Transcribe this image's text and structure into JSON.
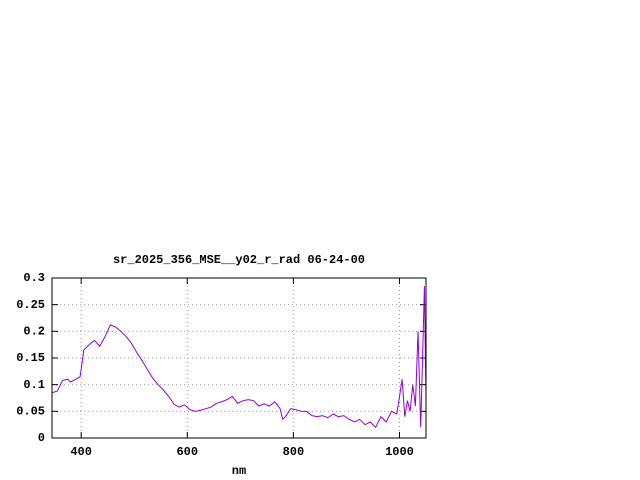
{
  "chart_data": {
    "type": "line",
    "title": "sr_2025_356_MSE__y02_r_rad 06-24-00",
    "x_label": "nm",
    "x": [
      345,
      355,
      365,
      375,
      380,
      390,
      398,
      405,
      415,
      425,
      435,
      445,
      455,
      465,
      475,
      485,
      495,
      505,
      515,
      525,
      535,
      545,
      555,
      565,
      575,
      585,
      595,
      605,
      615,
      625,
      635,
      645,
      655,
      665,
      675,
      685,
      695,
      705,
      715,
      725,
      735,
      745,
      755,
      765,
      775,
      780,
      785,
      795,
      805,
      815,
      825,
      835,
      845,
      855,
      865,
      875,
      885,
      895,
      905,
      915,
      925,
      935,
      945,
      955,
      965,
      975,
      985,
      995,
      1005,
      1010,
      1015,
      1020,
      1025,
      1030,
      1035,
      1040,
      1043,
      1047,
      1050
    ],
    "series": [
      {
        "name": "sr_2025_356_MSE__y02_r_rad",
        "color": "#9400d3",
        "values": [
          0.085,
          0.088,
          0.108,
          0.11,
          0.105,
          0.11,
          0.115,
          0.165,
          0.175,
          0.183,
          0.172,
          0.19,
          0.212,
          0.208,
          0.2,
          0.19,
          0.177,
          0.16,
          0.145,
          0.128,
          0.112,
          0.1,
          0.09,
          0.078,
          0.063,
          0.058,
          0.062,
          0.053,
          0.05,
          0.052,
          0.055,
          0.058,
          0.065,
          0.068,
          0.072,
          0.078,
          0.065,
          0.07,
          0.072,
          0.07,
          0.06,
          0.064,
          0.06,
          0.068,
          0.055,
          0.035,
          0.04,
          0.055,
          0.053,
          0.05,
          0.05,
          0.042,
          0.04,
          0.042,
          0.038,
          0.045,
          0.04,
          0.042,
          0.035,
          0.03,
          0.035,
          0.025,
          0.03,
          0.02,
          0.04,
          0.03,
          0.05,
          0.045,
          0.11,
          0.04,
          0.07,
          0.05,
          0.1,
          0.06,
          0.2,
          0.02,
          0.13,
          0.285,
          0.075
        ]
      }
    ],
    "xlim": [
      345,
      1050
    ],
    "ylim": [
      0,
      0.3
    ],
    "xticks": [
      400,
      600,
      800,
      1000
    ],
    "yticks": [
      0,
      0.05,
      0.1,
      0.15,
      0.2,
      0.25,
      0.3
    ],
    "grid": true
  }
}
